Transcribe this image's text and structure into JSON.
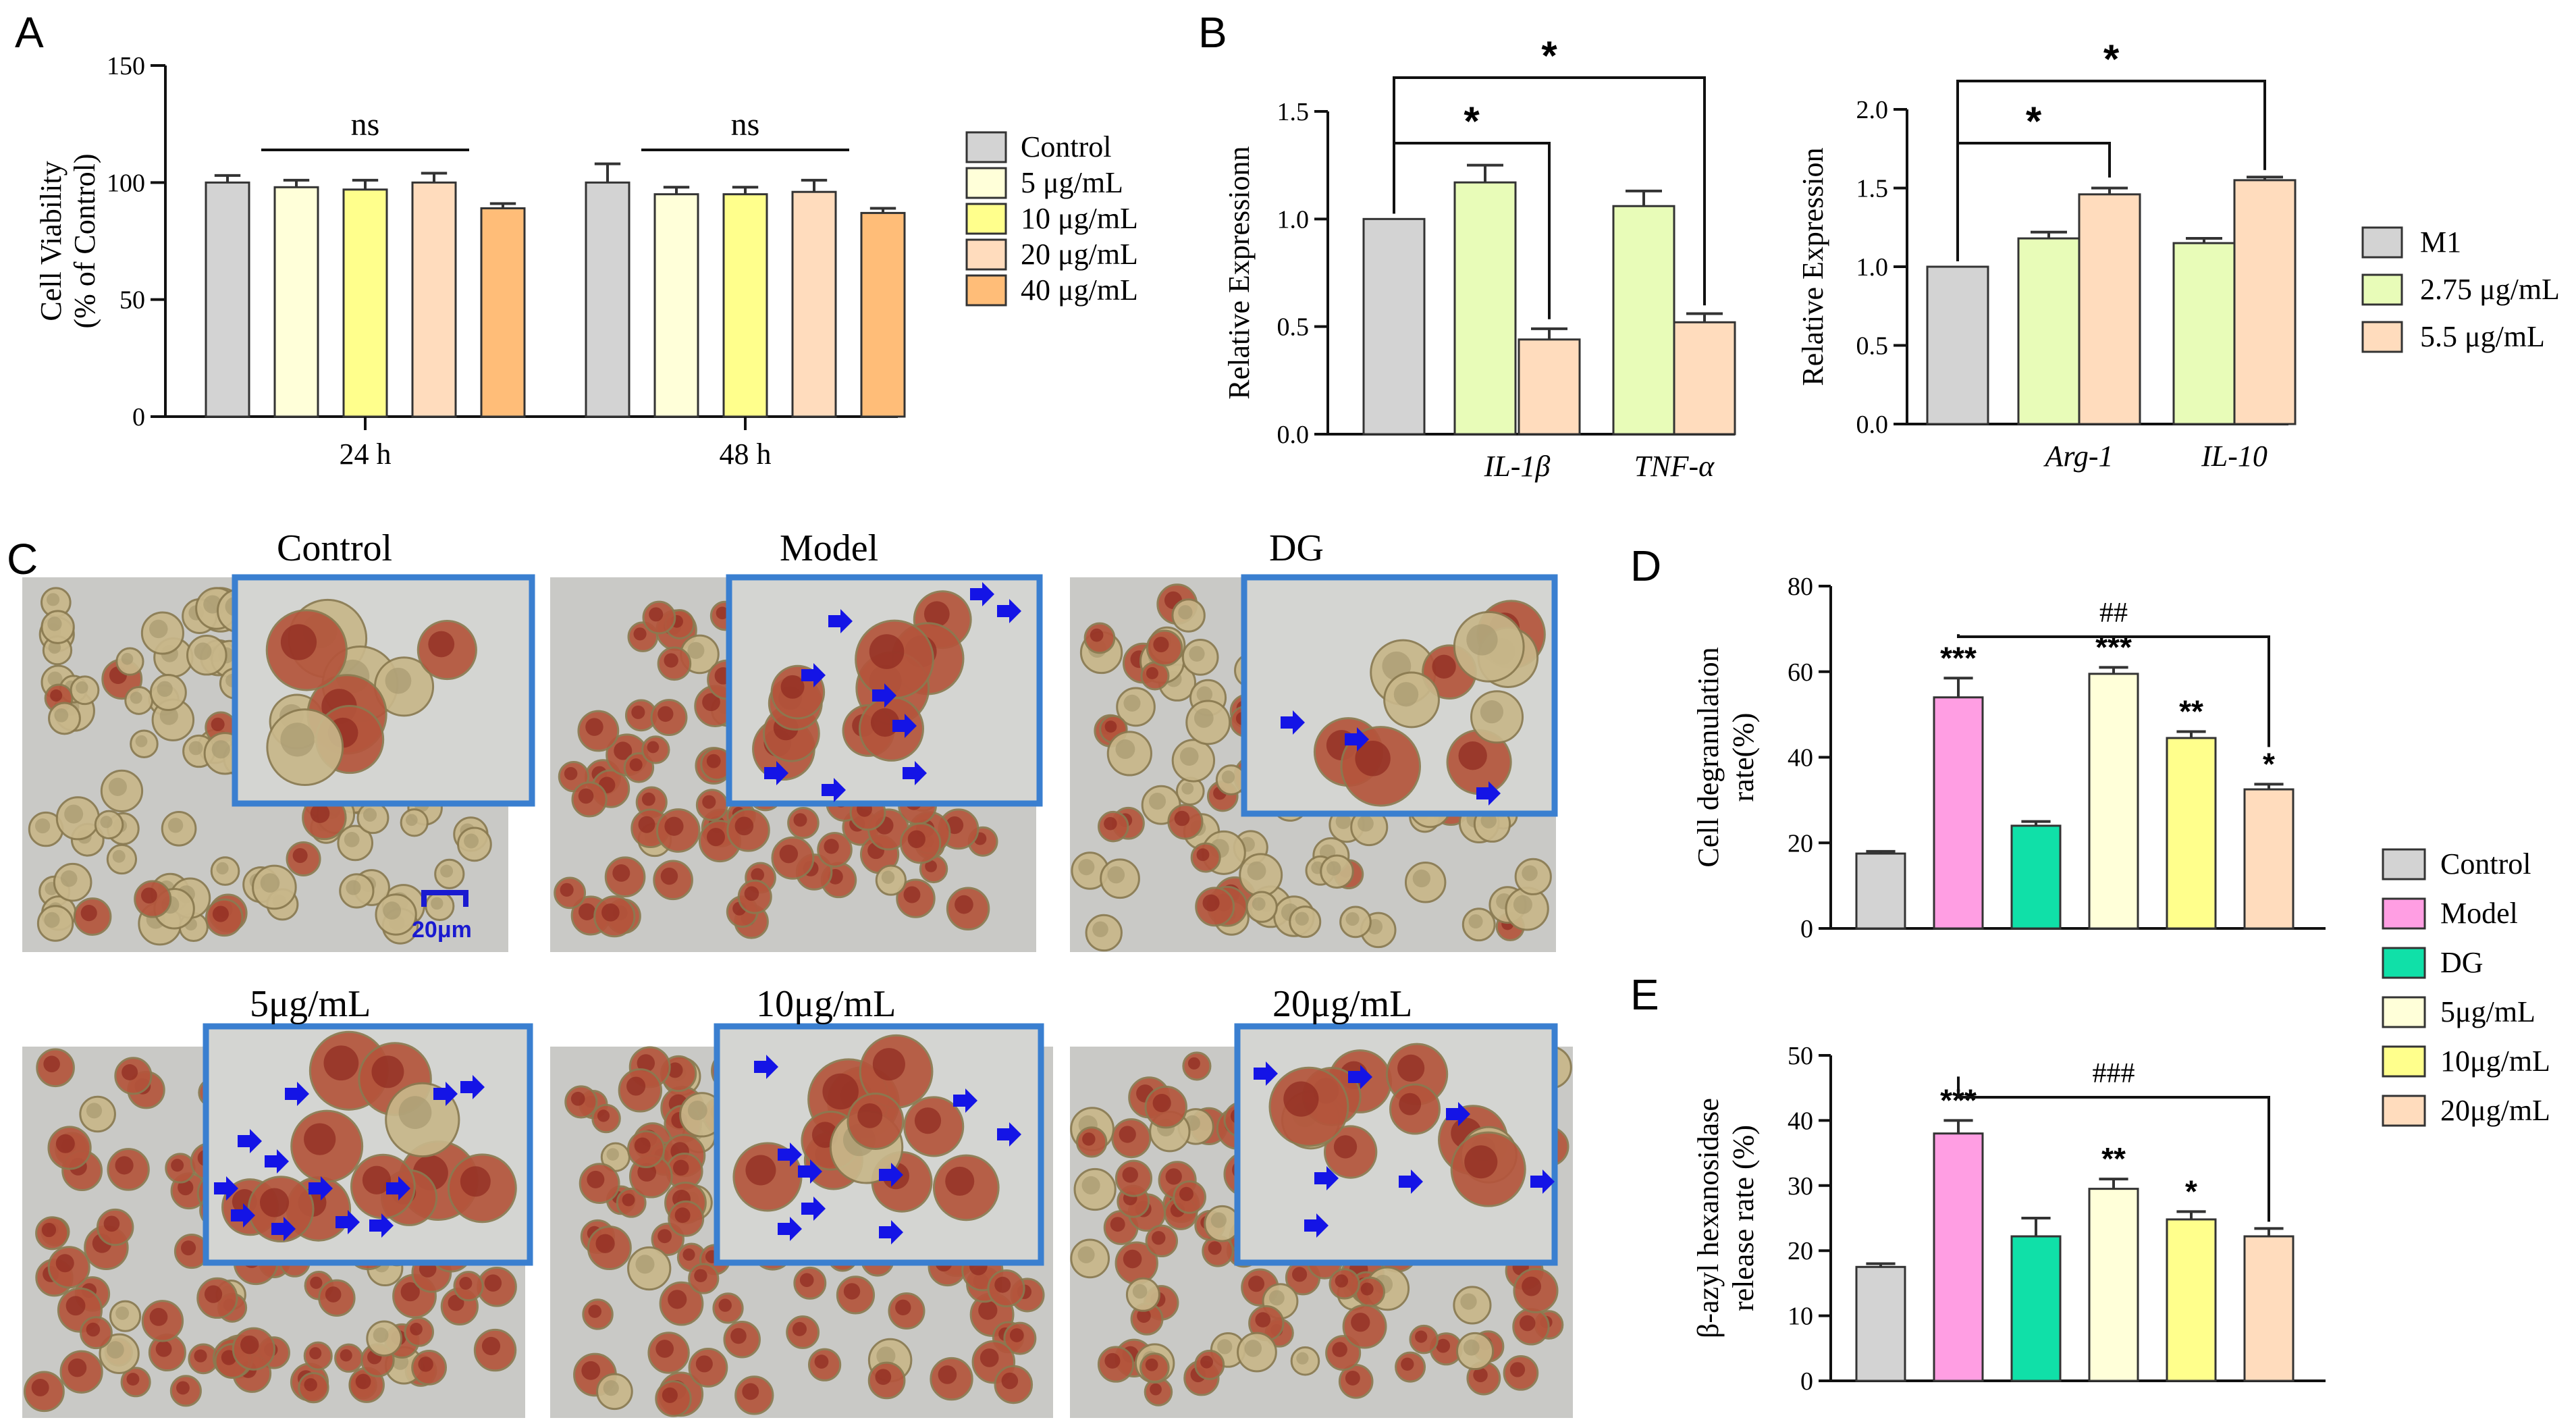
{
  "figure": {
    "panel_labels": {
      "A": "A",
      "B": "B",
      "C": "C",
      "D": "D",
      "E": "E"
    },
    "micrograph_panel": {
      "images": [
        {
          "label": "Control"
        },
        {
          "label": "Model"
        },
        {
          "label": "DG"
        },
        {
          "label": "5μg/mL"
        },
        {
          "label": "10μg/mL"
        },
        {
          "label": "20μg/mL"
        }
      ],
      "scale_bar_label": "20μm"
    }
  },
  "colors": {
    "gray": "#d3d3d3",
    "cream": "#ffffd9",
    "yellow": "#ffff8c",
    "peach": "#ffdcbd",
    "orange": "#ffbd78",
    "lightgreen": "#e8fcb8",
    "pink": "#ff9ee3",
    "teal": "#10e0a8",
    "inset_border": "#3a7fd0",
    "arrow": "#1414e6",
    "cell_bg": "#c9c9c6"
  },
  "chart_data": [
    {
      "id": "A",
      "type": "bar",
      "title": "",
      "ylabel_line1": "Cell Viability",
      "ylabel_line2": "(% of Control)",
      "xlabel": "",
      "ylim": [
        0,
        150
      ],
      "yticks": [
        "0",
        "50",
        "100",
        "150"
      ],
      "categories": [
        "24 h",
        "48 h"
      ],
      "series": [
        {
          "name": "Control",
          "color": "gray",
          "values": [
            100,
            100
          ],
          "errors": [
            3,
            8
          ]
        },
        {
          "name": "5 μg/mL",
          "color": "cream",
          "values": [
            98,
            95
          ],
          "errors": [
            3,
            3
          ]
        },
        {
          "name": "10 μg/mL",
          "color": "yellow",
          "values": [
            97,
            95
          ],
          "errors": [
            4,
            3
          ]
        },
        {
          "name": "20 μg/mL",
          "color": "peach",
          "values": [
            100,
            96
          ],
          "errors": [
            4,
            5
          ]
        },
        {
          "name": "40 μg/mL",
          "color": "orange",
          "values": [
            89,
            87
          ],
          "errors": [
            2,
            2
          ]
        }
      ],
      "annotations": [
        "ns",
        "ns"
      ]
    },
    {
      "id": "B1",
      "type": "bar",
      "ylabel": "Relative Expressionn",
      "ylim": [
        0,
        1.5
      ],
      "yticks": [
        "0.0",
        "0.5",
        "1.0",
        "1.5"
      ],
      "bars": [
        {
          "group": "",
          "color": "gray",
          "value": 1.0,
          "error": 0
        },
        {
          "group": "IL-1β",
          "color": "lightgreen",
          "value": 1.17,
          "error": 0.08
        },
        {
          "group": "IL-1β",
          "color": "peach",
          "value": 0.44,
          "error": 0.05
        },
        {
          "group": "TNF-α",
          "color": "lightgreen",
          "value": 1.06,
          "error": 0.07
        },
        {
          "group": "TNF-α",
          "color": "peach",
          "value": 0.52,
          "error": 0.04
        }
      ],
      "group_labels": [
        "IL-1β",
        "TNF-α"
      ],
      "significance": [
        "*",
        "*"
      ]
    },
    {
      "id": "B2",
      "type": "bar",
      "ylabel": "Relative Expression",
      "ylim": [
        0,
        2.0
      ],
      "yticks": [
        "0.0",
        "0.5",
        "1.0",
        "1.5",
        "2.0"
      ],
      "bars": [
        {
          "group": "",
          "color": "gray",
          "value": 1.0,
          "error": 0
        },
        {
          "group": "Arg-1",
          "color": "lightgreen",
          "value": 1.18,
          "error": 0.04
        },
        {
          "group": "Arg-1",
          "color": "peach",
          "value": 1.46,
          "error": 0.04
        },
        {
          "group": "IL-10",
          "color": "lightgreen",
          "value": 1.15,
          "error": 0.03
        },
        {
          "group": "IL-10",
          "color": "peach",
          "value": 1.55,
          "error": 0.02
        }
      ],
      "group_labels": [
        "Arg-1",
        "IL-10"
      ],
      "significance": [
        "*",
        "*"
      ],
      "legend": [
        {
          "name": "M1",
          "color": "gray"
        },
        {
          "name": "2.75 μg/mL",
          "color": "lightgreen"
        },
        {
          "name": "5.5 μg/mL",
          "color": "peach"
        }
      ]
    },
    {
      "id": "D",
      "type": "bar",
      "ylabel_line1": "Cell degranulation",
      "ylabel_line2": "rate(%)",
      "ylim": [
        0,
        80
      ],
      "yticks": [
        "0",
        "20",
        "40",
        "60",
        "80"
      ],
      "categories": [
        "Control",
        "Model",
        "DG",
        "5μg/mL",
        "10μg/mL",
        "20μg/mL"
      ],
      "values": [
        17.5,
        54,
        24,
        59.5,
        44.5,
        32.5
      ],
      "errors": [
        0.5,
        4.5,
        1,
        1.5,
        1.5,
        1.2
      ],
      "colors": [
        "gray",
        "pink",
        "teal",
        "cream",
        "yellow",
        "peach"
      ],
      "stars": [
        "",
        "***",
        "",
        "***",
        "**",
        "*"
      ],
      "bracket_label": "##"
    },
    {
      "id": "E",
      "type": "bar",
      "ylabel_line1": "β-azyl hexanosidase",
      "ylabel_line2": "release rate (%)",
      "ylim": [
        0,
        50
      ],
      "yticks": [
        "0",
        "10",
        "20",
        "30",
        "40",
        "50"
      ],
      "categories": [
        "Control",
        "Model",
        "DG",
        "5μg/mL",
        "10μg/mL",
        "20μg/mL"
      ],
      "values": [
        17.5,
        38,
        22.2,
        29.5,
        24.8,
        22.2
      ],
      "errors": [
        0.5,
        2,
        2.8,
        1.5,
        1.2,
        1.2
      ],
      "colors": [
        "gray",
        "pink",
        "teal",
        "cream",
        "yellow",
        "peach"
      ],
      "stars": [
        "",
        "***",
        "",
        "**",
        "*",
        ""
      ],
      "bracket_label": "###",
      "legend": [
        {
          "name": "Control",
          "color": "gray"
        },
        {
          "name": "Model",
          "color": "pink"
        },
        {
          "name": "DG",
          "color": "teal"
        },
        {
          "name": "5μg/mL",
          "color": "cream"
        },
        {
          "name": "10μg/mL",
          "color": "yellow"
        },
        {
          "name": "20μg/mL",
          "color": "peach"
        }
      ]
    }
  ]
}
